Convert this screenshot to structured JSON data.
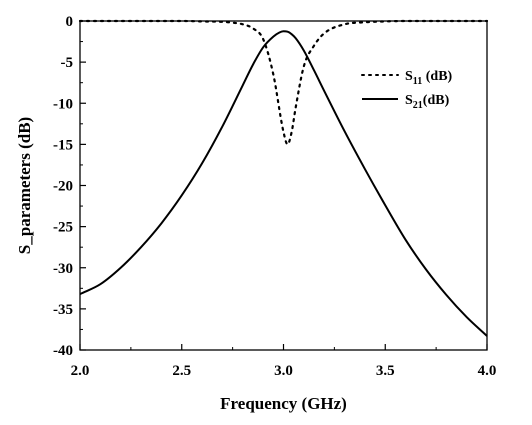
{
  "chart_data": {
    "type": "line",
    "xlabel": "Frequency (GHz)",
    "ylabel": "S_parameters (dB)",
    "xlim": [
      2.0,
      4.0
    ],
    "ylim": [
      -40,
      0
    ],
    "xticks": [
      "2.0",
      "2.5",
      "3.0",
      "3.5",
      "4.0"
    ],
    "yticks": [
      "0",
      "-5",
      "-10",
      "-15",
      "-20",
      "-25",
      "-30",
      "-35",
      "-40"
    ],
    "grid": false,
    "legend_position": "top-right",
    "series": [
      {
        "name": "S11 (dB)",
        "legend": {
          "main": "S",
          "sub": "11",
          "suffix": " (dB)"
        },
        "style": "dotted",
        "color": "#000000",
        "x": [
          2.0,
          2.5,
          2.6,
          2.7,
          2.75,
          2.8,
          2.85,
          2.9,
          2.95,
          3.0,
          3.02,
          3.04,
          3.06,
          3.1,
          3.15,
          3.2,
          3.3,
          3.4,
          3.5,
          3.6,
          4.0
        ],
        "y": [
          0,
          0,
          -0.05,
          -0.1,
          -0.2,
          -0.4,
          -0.9,
          -2.2,
          -6.5,
          -13.5,
          -15.0,
          -13.5,
          -10.5,
          -5.5,
          -3.0,
          -1.5,
          -0.4,
          -0.15,
          -0.05,
          0,
          0
        ]
      },
      {
        "name": "S21(dB)",
        "legend": {
          "main": "S",
          "sub": "21",
          "suffix": "(dB)"
        },
        "style": "solid",
        "color": "#000000",
        "x": [
          2.0,
          2.1,
          2.2,
          2.3,
          2.4,
          2.5,
          2.6,
          2.7,
          2.8,
          2.85,
          2.9,
          2.95,
          2.98,
          3.0,
          3.02,
          3.04,
          3.06,
          3.1,
          3.15,
          3.2,
          3.3,
          3.4,
          3.5,
          3.6,
          3.7,
          3.8,
          3.9,
          4.0
        ],
        "y": [
          -33.2,
          -32.0,
          -30.0,
          -27.5,
          -24.6,
          -21.2,
          -17.3,
          -12.8,
          -7.8,
          -5.3,
          -3.2,
          -1.9,
          -1.4,
          -1.25,
          -1.3,
          -1.6,
          -2.1,
          -3.6,
          -6.0,
          -8.5,
          -13.4,
          -18.0,
          -22.4,
          -26.6,
          -30.2,
          -33.3,
          -36.0,
          -38.3
        ]
      }
    ]
  }
}
